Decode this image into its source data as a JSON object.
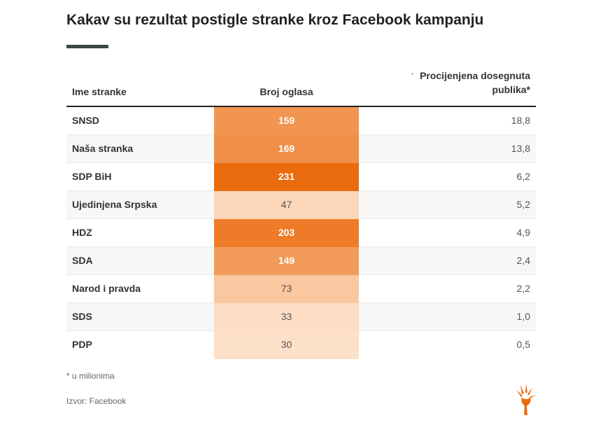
{
  "title": "Kakav su rezultat postigle stranke kroz Facebook kampanju",
  "colors": {
    "accent": "#ea6b0e",
    "title_rule": "#3f4646",
    "scale_low": "#fde0c8",
    "scale_high": "#ea6b0e"
  },
  "table": {
    "headers": {
      "name": "Ime stranke",
      "count": "Broj oglasa",
      "reach": "Procijenjena dosegnuta publika*"
    },
    "rows": [
      {
        "name": "SNSD",
        "count": "159",
        "reach": "18,8"
      },
      {
        "name": "Naša stranka",
        "count": "169",
        "reach": "13,8"
      },
      {
        "name": "SDP BiH",
        "count": "231",
        "reach": "6,2"
      },
      {
        "name": "Ujedinjena Srpska",
        "count": "47",
        "reach": "5,2"
      },
      {
        "name": "HDZ",
        "count": "203",
        "reach": "4,9"
      },
      {
        "name": "SDA",
        "count": "149",
        "reach": "2,4"
      },
      {
        "name": "Narod i pravda",
        "count": "73",
        "reach": "2,2"
      },
      {
        "name": "SDS",
        "count": "33",
        "reach": "1,0"
      },
      {
        "name": "PDP",
        "count": "30",
        "reach": "0,5"
      }
    ]
  },
  "footnote": "* u milionima",
  "source": "Izvor: Facebook",
  "logo_icon": "rferl-torch-logo-icon",
  "chart_data": {
    "type": "table",
    "title": "Kakav su rezultat postigle stranke kroz Facebook kampanju",
    "columns": [
      "Ime stranke",
      "Broj oglasa",
      "Procijenjena dosegnuta publika*"
    ],
    "categories": [
      "SNSD",
      "Naša stranka",
      "SDP BiH",
      "Ujedinjena Srpska",
      "HDZ",
      "SDA",
      "Narod i pravda",
      "SDS",
      "PDP"
    ],
    "series": [
      {
        "name": "Broj oglasa",
        "values": [
          159,
          169,
          231,
          47,
          203,
          149,
          73,
          33,
          30
        ]
      },
      {
        "name": "Procijenjena dosegnuta publika*",
        "values": [
          18.8,
          13.8,
          6.2,
          5.2,
          4.9,
          2.4,
          2.2,
          1.0,
          0.5
        ]
      }
    ],
    "heatmap_column": "Broj oglasa",
    "heatmap_range": [
      30,
      231
    ]
  }
}
